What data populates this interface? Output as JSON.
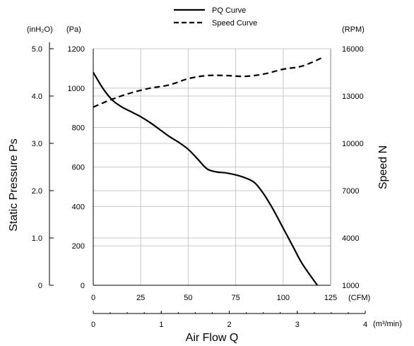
{
  "chart_data": {
    "type": "line",
    "title": "",
    "legend": {
      "placement": "top-center",
      "entries": [
        {
          "label": "PQ Curve",
          "style": "solid"
        },
        {
          "label": "Speed Curve",
          "style": "dashed"
        }
      ]
    },
    "xlabel": "Air Flow Q",
    "ylabel_left": "Static Pressure Ps",
    "ylabel_right": "Speed N",
    "axes": {
      "cfm": {
        "unit": "(CFM)",
        "range": [
          0,
          125
        ],
        "ticks": [
          "0",
          "25",
          "50",
          "75",
          "100",
          "125"
        ]
      },
      "m3min": {
        "unit": "(m³/min)",
        "range": [
          0,
          4
        ],
        "ticks": [
          "0",
          "1",
          "2",
          "3",
          "4"
        ]
      },
      "pa": {
        "unit": "(Pa)",
        "range": [
          0,
          1200
        ],
        "ticks": [
          "0",
          "200",
          "400",
          "600",
          "800",
          "1000",
          "1200"
        ]
      },
      "inh2o": {
        "unit": "(inH₂O)",
        "range": [
          0,
          5
        ],
        "ticks": [
          "0",
          "1.0",
          "2.0",
          "3.0",
          "4.0",
          "5.0"
        ]
      },
      "rpm": {
        "unit": "(RPM)",
        "range": [
          1000,
          16000
        ],
        "ticks": [
          "1000",
          "4000",
          "7000",
          "10000",
          "13000",
          "16000"
        ]
      }
    },
    "grid": true,
    "series": [
      {
        "name": "PQ Curve",
        "axis": "pa",
        "x_cfm": [
          0,
          5,
          10,
          15,
          20,
          25,
          30,
          35,
          40,
          45,
          50,
          55,
          60,
          65,
          70,
          75,
          80,
          85,
          90,
          95,
          100,
          105,
          110,
          118
        ],
        "y_pa": [
          1080,
          1000,
          940,
          905,
          880,
          855,
          825,
          790,
          755,
          725,
          690,
          640,
          590,
          575,
          570,
          560,
          545,
          520,
          460,
          380,
          290,
          200,
          110,
          0
        ]
      },
      {
        "name": "Speed Curve",
        "axis": "rpm",
        "x_cfm": [
          0,
          10,
          20,
          30,
          40,
          50,
          60,
          70,
          80,
          90,
          100,
          110,
          120
        ],
        "y_rpm": [
          12300,
          12800,
          13200,
          13500,
          13700,
          14100,
          14300,
          14300,
          14250,
          14400,
          14700,
          14900,
          15400
        ]
      }
    ]
  }
}
